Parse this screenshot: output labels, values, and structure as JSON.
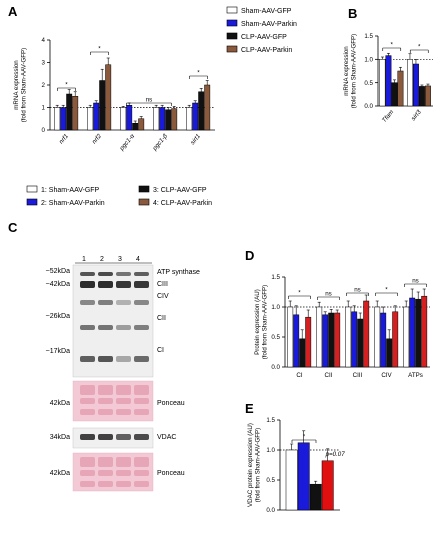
{
  "figure": {
    "panels": [
      "A",
      "B",
      "C",
      "D",
      "E"
    ],
    "legend_top": [
      {
        "label": "Sham-AAV-GFP",
        "color": "#ffffff"
      },
      {
        "label": "Sham-AAV-Parkin",
        "color": "#1a1adb"
      },
      {
        "label": "CLP-AAV-GFP",
        "color": "#111111"
      },
      {
        "label": "CLP-AAV-Parkin",
        "color": "#8b5a3c"
      }
    ],
    "legend_mid": [
      {
        "label": "1: Sham-AAV-GFP",
        "color": "#ffffff"
      },
      {
        "label": "2: Sham-AAV-Parkin",
        "color": "#1a1adb"
      },
      {
        "label": "3: CLP-AAV-GFP",
        "color": "#111111"
      },
      {
        "label": "4: CLP-AAV-Parkin",
        "color": "#8b5a3c"
      }
    ]
  },
  "chart_data": [
    {
      "panel": "A",
      "type": "bar",
      "ylabel": "mRNA expression\n(fold from Sham-AAV-GFP)",
      "ylim": [
        0,
        4
      ],
      "yticks": [
        "0",
        "1",
        "2",
        "3",
        "4"
      ],
      "categories": [
        "nrf1",
        "nrf2",
        "pgc1-α",
        "pgc1-β",
        "sirt1"
      ],
      "colors": [
        "#ffffff",
        "#1a1adb",
        "#111111",
        "#8b5a3c"
      ],
      "values": [
        [
          1.0,
          1.0,
          1.6,
          1.5
        ],
        [
          1.0,
          1.2,
          2.2,
          2.9
        ],
        [
          1.0,
          1.1,
          0.3,
          0.5
        ],
        [
          1.0,
          1.0,
          0.9,
          0.95
        ],
        [
          1.0,
          1.2,
          1.7,
          2.0
        ]
      ],
      "errors": [
        [
          0.1,
          0.1,
          0.2,
          0.2
        ],
        [
          0.1,
          0.1,
          0.5,
          0.3
        ],
        [
          0.05,
          0.1,
          0.1,
          0.1
        ],
        [
          0.1,
          0.1,
          0.1,
          0.1
        ],
        [
          0.1,
          0.1,
          0.15,
          0.2
        ]
      ],
      "annotations": [
        "ns"
      ]
    },
    {
      "panel": "B",
      "type": "bar",
      "ylabel": "mRNA expression\n(fold from Sham-AAV-GFP)",
      "ylim": [
        0,
        1.5
      ],
      "yticks": [
        "0.0",
        "0.5",
        "1.0",
        "1.5"
      ],
      "categories": [
        "Tfam",
        "sirt3"
      ],
      "colors": [
        "#ffffff",
        "#1a1adb",
        "#111111",
        "#8b5a3c"
      ],
      "values": [
        [
          1.0,
          1.08,
          0.5,
          0.75
        ],
        [
          1.0,
          0.9,
          0.42,
          0.43
        ]
      ],
      "errors": [
        [
          0.05,
          0.05,
          0.06,
          0.08
        ],
        [
          0.12,
          0.1,
          0.03,
          0.04
        ]
      ]
    },
    {
      "panel": "C",
      "type": "table",
      "lanes": [
        "1",
        "2",
        "3",
        "4"
      ],
      "left_labels": [
        "~52kDa",
        "~42kDa",
        "~26kDa",
        "~17kDa",
        "42kDa",
        "34kDa",
        "42kDa"
      ],
      "right_labels": [
        "ATP synthase",
        "CIII",
        "CIV",
        "CII",
        "CI",
        "Ponceau",
        "VDAC",
        "Ponceau"
      ]
    },
    {
      "panel": "D",
      "type": "bar",
      "ylabel": "Protein expression (AU)\n(fold from Sham-AAV-GFP)",
      "ylim": [
        0,
        1.5
      ],
      "yticks": [
        "0.0",
        "0.5",
        "1.0",
        "1.5"
      ],
      "categories": [
        "CI",
        "CII",
        "CIII",
        "CIV",
        "ATPs"
      ],
      "colors": [
        "#ffffff",
        "#1a1adb",
        "#111111",
        "#d42020"
      ],
      "values": [
        [
          1.0,
          0.87,
          0.47,
          0.83
        ],
        [
          1.0,
          0.87,
          0.9,
          0.9
        ],
        [
          1.0,
          0.92,
          0.8,
          1.1
        ],
        [
          1.0,
          0.9,
          0.47,
          0.92
        ],
        [
          1.0,
          1.15,
          1.13,
          1.18
        ]
      ],
      "errors": [
        [
          0.1,
          0.15,
          0.15,
          0.12
        ],
        [
          0.08,
          0.05,
          0.06,
          0.05
        ],
        [
          0.1,
          0.1,
          0.1,
          0.1
        ],
        [
          0.1,
          0.1,
          0.15,
          0.1
        ],
        [
          0.1,
          0.15,
          0.12,
          0.12
        ]
      ],
      "annotations": [
        "ns",
        "ns",
        "ns"
      ]
    },
    {
      "panel": "E",
      "type": "bar",
      "ylabel": "VDAC protein expression (AU)\n(fold from Sham-AAV-GFP)",
      "ylim": [
        0,
        1.5
      ],
      "yticks": [
        "0.0",
        "0.5",
        "1.0",
        "1.5"
      ],
      "colors": [
        "#ffffff",
        "#1a1adb",
        "#111111",
        "#e01010"
      ],
      "values": [
        1.0,
        1.12,
        0.43,
        0.82
      ],
      "errors": [
        0.1,
        0.2,
        0.05,
        0.2
      ],
      "annotations": [
        "p=0.07"
      ]
    }
  ]
}
